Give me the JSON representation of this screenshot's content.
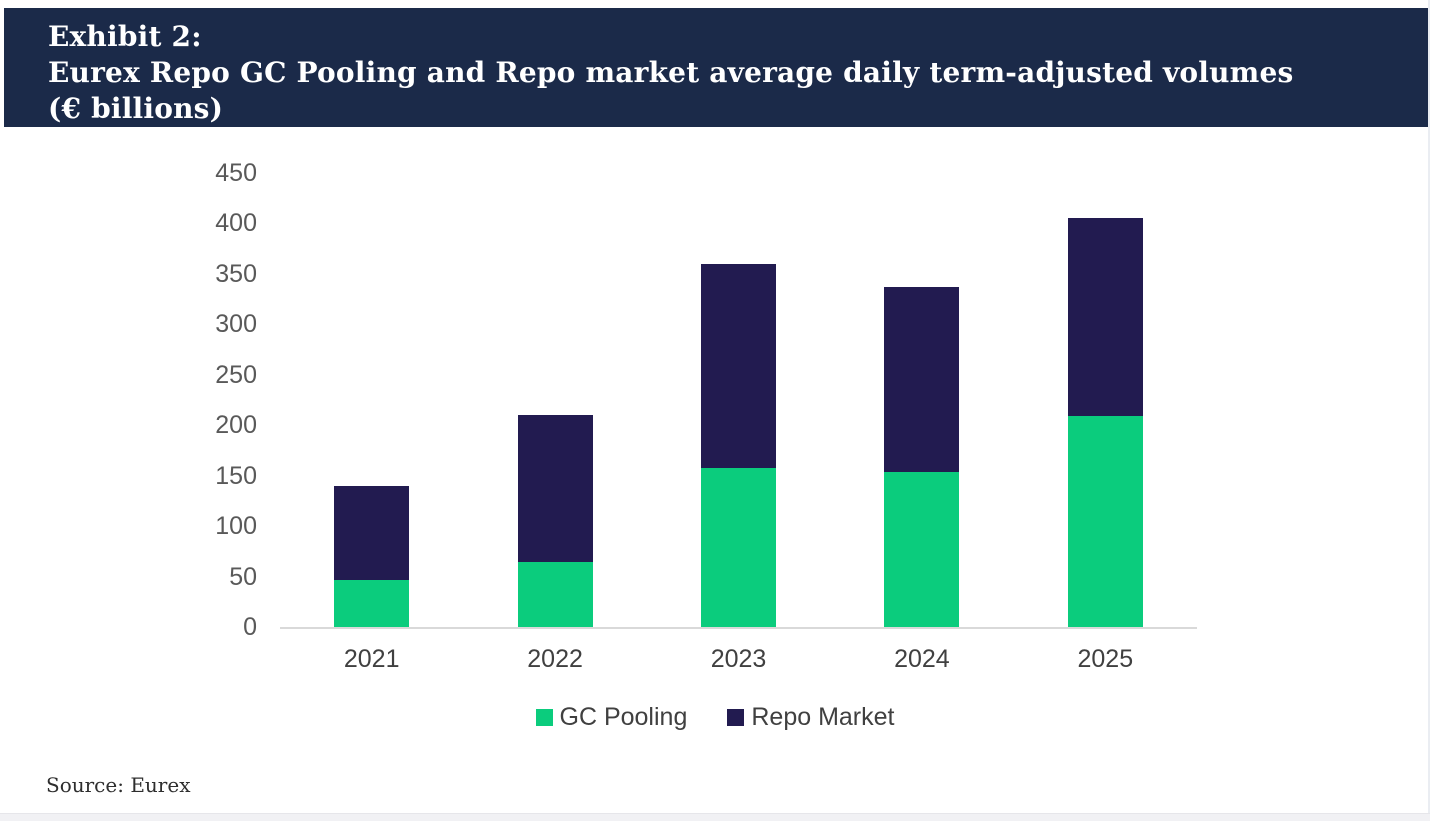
{
  "header": {
    "title_line1": "Exhibit 2:",
    "title_line2": "Eurex Repo GC Pooling and Repo market average daily term-adjusted volumes",
    "title_line3": "(€ billions)"
  },
  "chart_data": {
    "type": "bar",
    "stacked": true,
    "title": "Eurex Repo GC Pooling and Repo market average daily term-adjusted volumes (€ billions)",
    "categories": [
      "2021",
      "2022",
      "2023",
      "2024",
      "2025"
    ],
    "series": [
      {
        "name": "GC Pooling",
        "color": "#0BCC7D",
        "values": [
          47,
          64,
          158,
          154,
          209
        ]
      },
      {
        "name": "Repo Market",
        "color": "#221B50",
        "values": [
          93,
          146,
          202,
          183,
          196
        ]
      }
    ],
    "stack_totals": [
      140,
      210,
      360,
      337,
      405
    ],
    "ylim": [
      0,
      450
    ],
    "ytick_step": 50,
    "ytick_labels": [
      "0",
      "50",
      "100",
      "150",
      "200",
      "250",
      "300",
      "350",
      "400",
      "450"
    ],
    "xlabel": "",
    "ylabel": "",
    "grid": false,
    "legend_position": "bottom"
  },
  "source": {
    "label": "Source: Eurex"
  },
  "colors": {
    "header_bg": "#1B2A49",
    "gc_pooling_green": "#0BCC7D",
    "repo_market_navy": "#221B50",
    "axis_line": "#D9D9D9",
    "y_tick_text": "#595959",
    "x_tick_text": "#404040"
  }
}
